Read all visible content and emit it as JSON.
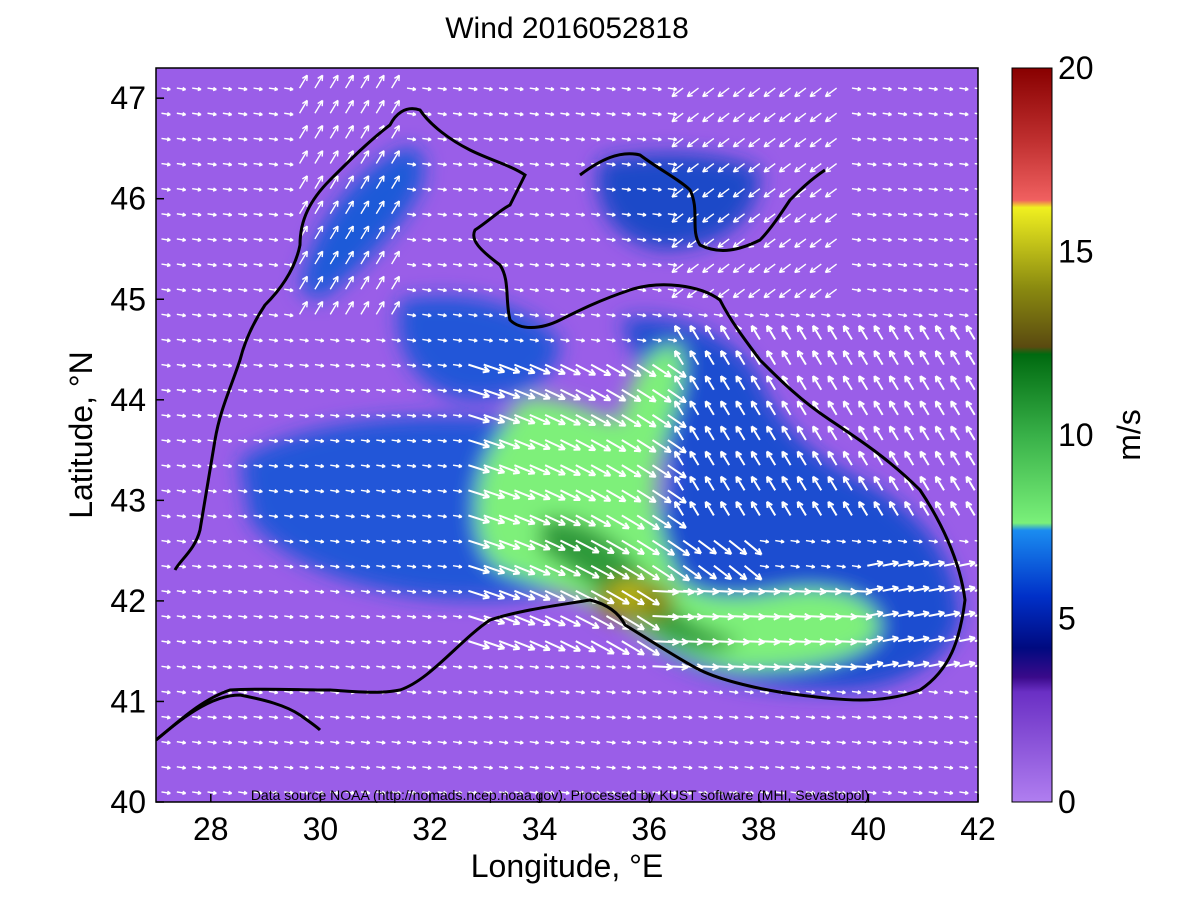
{
  "title": "Wind 2016052818",
  "x_axis": {
    "label": "Longitude, °E",
    "range": [
      27,
      42
    ],
    "ticks": [
      "28",
      "30",
      "32",
      "34",
      "36",
      "38",
      "40",
      "42"
    ],
    "tick_values": [
      28,
      30,
      32,
      34,
      36,
      38,
      40,
      42
    ]
  },
  "y_axis": {
    "label": "Latitude, °N",
    "range": [
      40,
      47.3
    ],
    "ticks": [
      "40",
      "41",
      "42",
      "43",
      "44",
      "45",
      "46",
      "47"
    ],
    "tick_values": [
      40,
      41,
      42,
      43,
      44,
      45,
      46,
      47
    ]
  },
  "colorbar": {
    "label": "m/s",
    "range": [
      0,
      20
    ],
    "ticks": [
      "0",
      "5",
      "10",
      "15",
      "20"
    ],
    "tick_values": [
      0,
      5,
      10,
      15,
      20
    ],
    "stops": [
      {
        "value": 0,
        "color": "#b07ef0"
      },
      {
        "value": 3,
        "color": "#6a2fc4"
      },
      {
        "value": 3.4,
        "color": "#3a0a8a"
      },
      {
        "value": 4.2,
        "color": "#000a80"
      },
      {
        "value": 5.6,
        "color": "#0030c8"
      },
      {
        "value": 7.4,
        "color": "#1a8cf0"
      },
      {
        "value": 7.6,
        "color": "#7af07a"
      },
      {
        "value": 10,
        "color": "#38b048"
      },
      {
        "value": 12.2,
        "color": "#006a10"
      },
      {
        "value": 12.4,
        "color": "#5a4a10"
      },
      {
        "value": 14,
        "color": "#8a8a10"
      },
      {
        "value": 16.2,
        "color": "#f0f020"
      },
      {
        "value": 16.4,
        "color": "#f06060"
      },
      {
        "value": 18,
        "color": "#c03030"
      },
      {
        "value": 20,
        "color": "#880000"
      }
    ]
  },
  "credit": "Data source NOAA (http://nomads.ncep.noaa.gov). Processed by KUST software (MHI, Sevastopol)",
  "colors": {
    "background_field": "#9a5ee8",
    "coastline": "#000000",
    "arrows": "#ffffff"
  },
  "jet_core": {
    "center_lon": 35.5,
    "center_lat": 42.2,
    "peak_speed": 15
  }
}
